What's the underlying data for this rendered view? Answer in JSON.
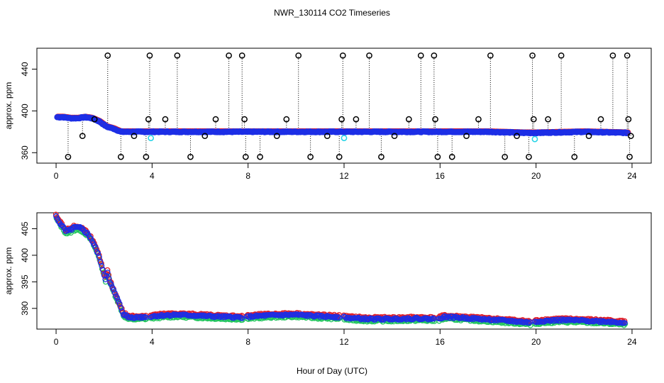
{
  "chart_data": [
    {
      "type": "scatter",
      "title": "NWR_130114  CO2 Timeseries",
      "xlabel": "",
      "ylabel": "approx. ppm",
      "xlim": [
        -0.8,
        24.8
      ],
      "ylim": [
        350,
        460
      ],
      "x_ticks": [
        0,
        4,
        8,
        12,
        16,
        20,
        24
      ],
      "y_ticks": [
        360,
        400,
        440
      ],
      "baseline_points": [
        [
          0.05,
          394
        ],
        [
          0.3,
          394
        ],
        [
          0.6,
          393
        ],
        [
          0.9,
          393
        ],
        [
          1.2,
          394
        ],
        [
          1.5,
          393
        ],
        [
          1.8,
          390
        ],
        [
          2.1,
          385
        ],
        [
          2.4,
          383
        ],
        [
          2.7,
          380
        ],
        [
          3.0,
          380
        ],
        [
          3.5,
          380
        ],
        [
          4.0,
          380
        ],
        [
          6.0,
          380
        ],
        [
          8.0,
          380
        ],
        [
          10.0,
          380
        ],
        [
          12.0,
          380
        ],
        [
          14.0,
          380
        ],
        [
          16.0,
          380
        ],
        [
          18.0,
          380
        ],
        [
          19.5,
          379
        ],
        [
          20.0,
          379
        ],
        [
          22.0,
          380
        ],
        [
          23.8,
          379
        ]
      ],
      "spike_points": [
        {
          "x": 2.15,
          "y": 453
        },
        {
          "x": 3.9,
          "y": 453
        },
        {
          "x": 5.05,
          "y": 453
        },
        {
          "x": 7.2,
          "y": 453
        },
        {
          "x": 7.75,
          "y": 453
        },
        {
          "x": 10.1,
          "y": 453
        },
        {
          "x": 11.95,
          "y": 453
        },
        {
          "x": 13.05,
          "y": 453
        },
        {
          "x": 15.2,
          "y": 453
        },
        {
          "x": 15.75,
          "y": 453
        },
        {
          "x": 18.1,
          "y": 453
        },
        {
          "x": 19.85,
          "y": 453
        },
        {
          "x": 21.05,
          "y": 453
        },
        {
          "x": 23.2,
          "y": 453
        },
        {
          "x": 23.8,
          "y": 453
        },
        {
          "x": 0.5,
          "y": 356
        },
        {
          "x": 2.7,
          "y": 356
        },
        {
          "x": 3.75,
          "y": 356
        },
        {
          "x": 5.6,
          "y": 356
        },
        {
          "x": 7.9,
          "y": 356
        },
        {
          "x": 8.5,
          "y": 356
        },
        {
          "x": 10.6,
          "y": 356
        },
        {
          "x": 11.8,
          "y": 356
        },
        {
          "x": 13.55,
          "y": 356
        },
        {
          "x": 15.9,
          "y": 356
        },
        {
          "x": 16.5,
          "y": 356
        },
        {
          "x": 18.7,
          "y": 356
        },
        {
          "x": 19.7,
          "y": 356
        },
        {
          "x": 21.6,
          "y": 356
        },
        {
          "x": 23.9,
          "y": 356
        },
        {
          "x": 1.1,
          "y": 376
        },
        {
          "x": 3.25,
          "y": 376
        },
        {
          "x": 6.2,
          "y": 376
        },
        {
          "x": 9.2,
          "y": 376
        },
        {
          "x": 11.3,
          "y": 376
        },
        {
          "x": 14.1,
          "y": 376
        },
        {
          "x": 17.1,
          "y": 376
        },
        {
          "x": 19.2,
          "y": 376
        },
        {
          "x": 22.2,
          "y": 376
        },
        {
          "x": 23.95,
          "y": 376
        },
        {
          "x": 1.6,
          "y": 392
        },
        {
          "x": 3.85,
          "y": 392
        },
        {
          "x": 4.55,
          "y": 392
        },
        {
          "x": 6.65,
          "y": 392
        },
        {
          "x": 7.85,
          "y": 392
        },
        {
          "x": 9.6,
          "y": 392
        },
        {
          "x": 11.9,
          "y": 392
        },
        {
          "x": 12.5,
          "y": 392
        },
        {
          "x": 14.7,
          "y": 392
        },
        {
          "x": 15.8,
          "y": 392
        },
        {
          "x": 17.6,
          "y": 392
        },
        {
          "x": 19.9,
          "y": 392
        },
        {
          "x": 20.5,
          "y": 392
        },
        {
          "x": 22.7,
          "y": 392
        },
        {
          "x": 23.85,
          "y": 392
        }
      ]
    },
    {
      "type": "scatter",
      "title": "",
      "xlabel": "Hour of Day (UTC)",
      "ylabel": "approx. ppm",
      "xlim": [
        -0.8,
        24.8
      ],
      "ylim": [
        386.1,
        408.0
      ],
      "x_ticks": [
        0,
        4,
        8,
        12,
        16,
        20,
        24
      ],
      "y_ticks": [
        390,
        395,
        400,
        405
      ],
      "gap_hours": [
        3.85,
        7.85,
        11.9,
        15.85,
        19.85,
        23.8
      ],
      "series_points": [
        [
          0.0,
          407.2
        ],
        [
          0.1,
          406.5
        ],
        [
          0.25,
          405.5
        ],
        [
          0.4,
          404.5
        ],
        [
          0.55,
          404.6
        ],
        [
          0.7,
          405.1
        ],
        [
          0.85,
          405.2
        ],
        [
          1.0,
          405.1
        ],
        [
          1.15,
          404.7
        ],
        [
          1.3,
          404.1
        ],
        [
          1.45,
          403.2
        ],
        [
          1.6,
          401.8
        ],
        [
          1.75,
          400.2
        ],
        [
          1.85,
          398.9
        ],
        [
          1.95,
          397.0
        ],
        [
          2.05,
          395.6
        ],
        [
          2.15,
          396.8
        ],
        [
          2.25,
          395.0
        ],
        [
          2.35,
          393.8
        ],
        [
          2.5,
          392.3
        ],
        [
          2.65,
          390.7
        ],
        [
          2.8,
          389.0
        ],
        [
          3.0,
          388.3
        ],
        [
          3.3,
          388.3
        ],
        [
          3.8,
          388.4
        ],
        [
          4.2,
          388.6
        ],
        [
          5.0,
          388.8
        ],
        [
          6.0,
          388.6
        ],
        [
          7.0,
          388.4
        ],
        [
          7.8,
          388.3
        ],
        [
          8.2,
          388.5
        ],
        [
          9.0,
          388.7
        ],
        [
          10.0,
          388.8
        ],
        [
          11.0,
          388.5
        ],
        [
          11.8,
          388.4
        ],
        [
          12.2,
          388.2
        ],
        [
          13.0,
          388.0
        ],
        [
          14.0,
          388.0
        ],
        [
          15.0,
          388.1
        ],
        [
          15.8,
          388.0
        ],
        [
          16.2,
          388.4
        ],
        [
          17.0,
          388.2
        ],
        [
          18.0,
          387.9
        ],
        [
          19.0,
          387.6
        ],
        [
          19.8,
          387.3
        ],
        [
          20.2,
          387.6
        ],
        [
          21.0,
          387.8
        ],
        [
          22.0,
          387.7
        ],
        [
          23.0,
          387.5
        ],
        [
          23.7,
          387.3
        ]
      ]
    }
  ]
}
